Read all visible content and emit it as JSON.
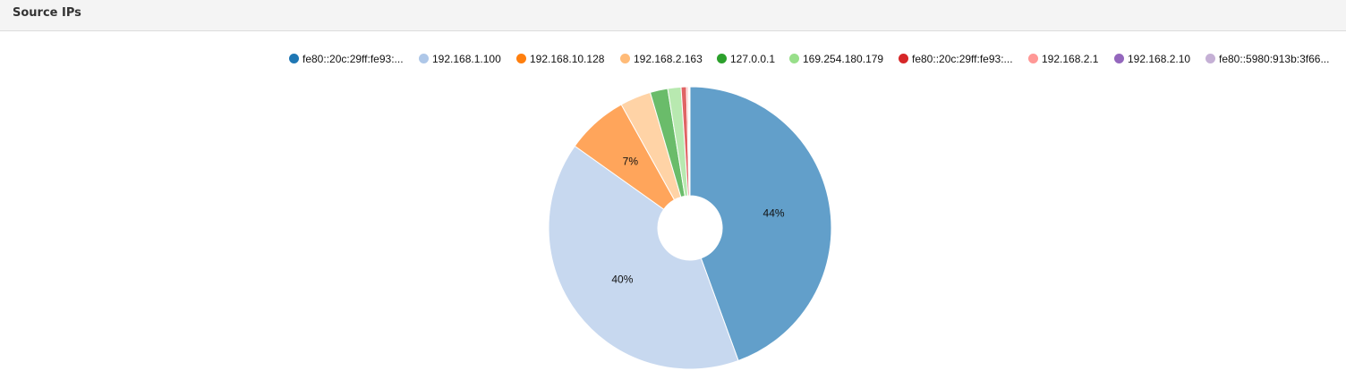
{
  "header": {
    "title": "Source IPs"
  },
  "chart_data": {
    "type": "pie",
    "donut": true,
    "legend_position": "top-right",
    "categories": [
      "fe80::20c:29ff:fe93:...",
      "192.168.1.100",
      "192.168.10.128",
      "192.168.2.163",
      "127.0.0.1",
      "169.254.180.179",
      "fe80::20c:29ff:fe93:...",
      "192.168.2.1",
      "192.168.2.10",
      "fe80::5980:913b:3f66..."
    ],
    "values": [
      44,
      40,
      7,
      3.5,
      2,
      1.5,
      0.6,
      0.2,
      0.1,
      0.1
    ],
    "colors": [
      "#1f77b4",
      "#aec7e8",
      "#ff7f0e",
      "#ffbb78",
      "#2ca02c",
      "#98df8a",
      "#d62728",
      "#ff9896",
      "#9467bd",
      "#c5b0d5"
    ],
    "slice_colors": [
      "#629fca",
      "#c7d8ef",
      "#ffa55b",
      "#ffd3a6",
      "#6abc6a",
      "#b8e9b0",
      "#e06465",
      "#ffb6b4",
      "#b395cf",
      "#d7c9e2"
    ],
    "data_labels": [
      {
        "index": 0,
        "text": "44%"
      },
      {
        "index": 1,
        "text": "40%"
      },
      {
        "index": 2,
        "text": "7%"
      }
    ]
  }
}
